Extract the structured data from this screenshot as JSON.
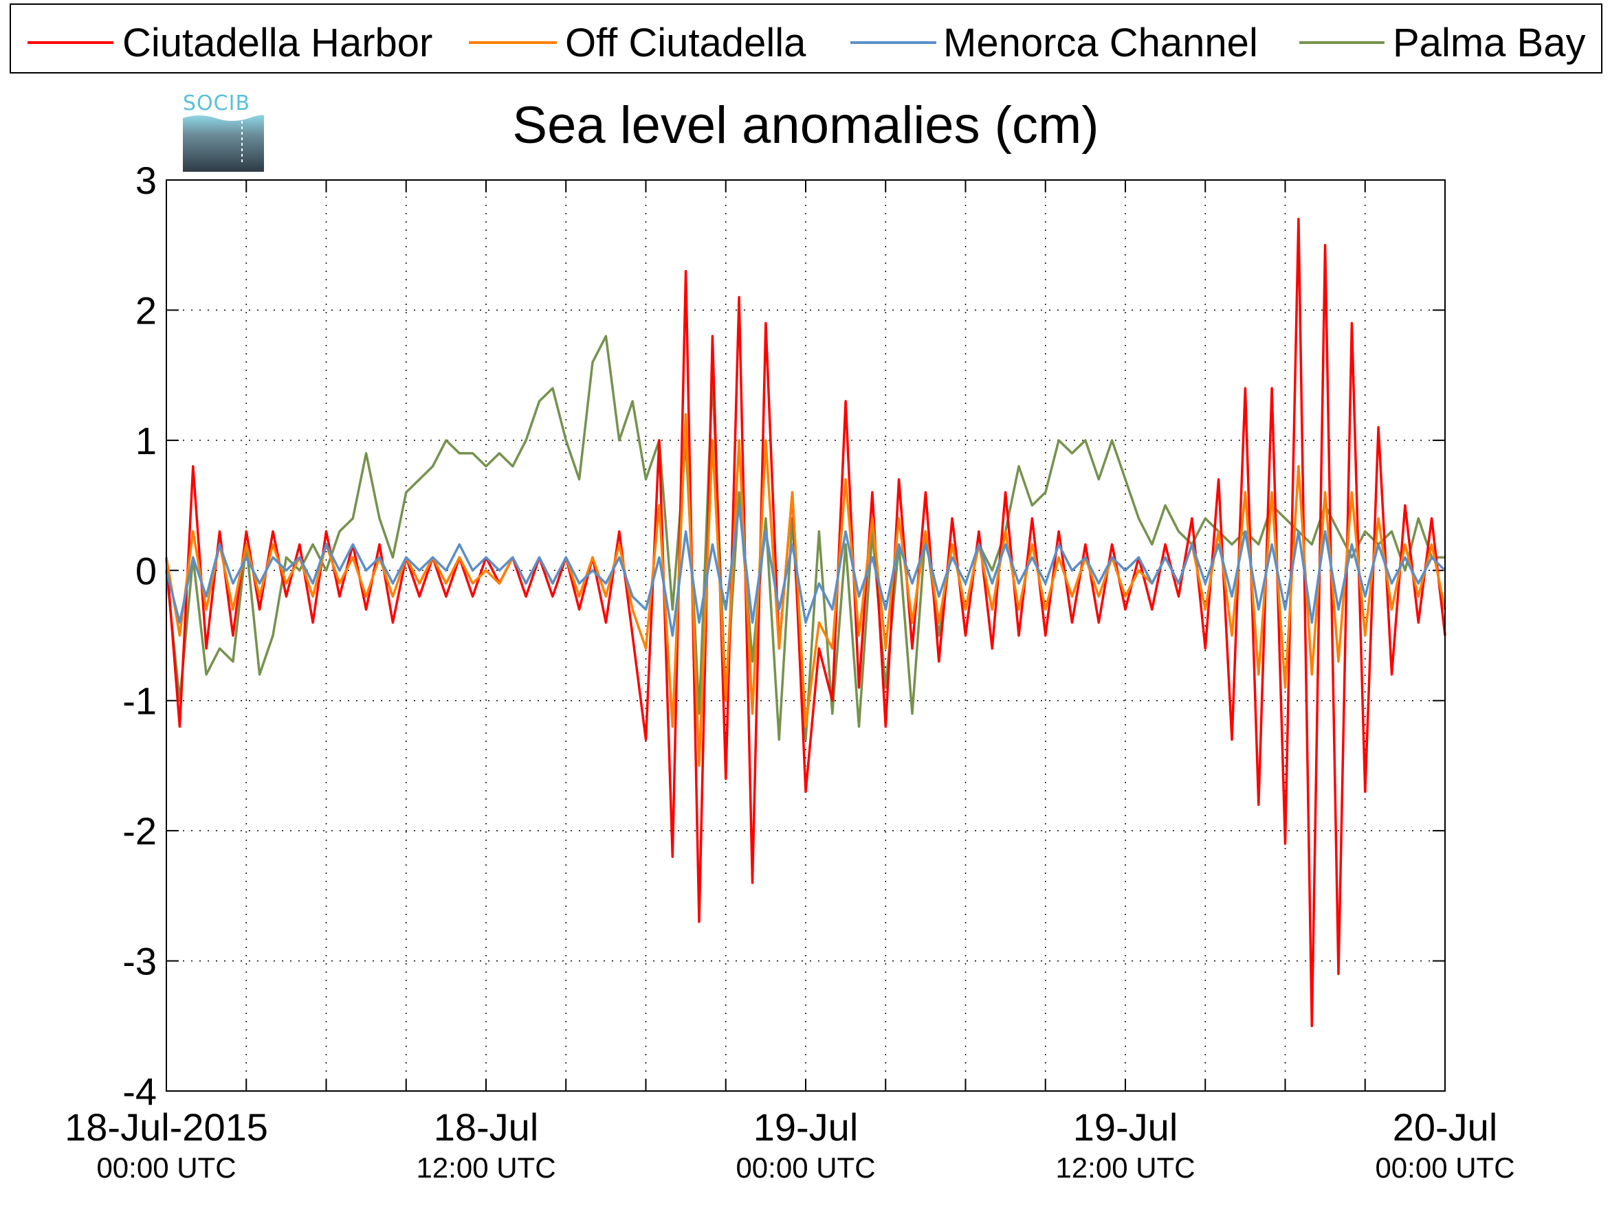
{
  "logo": {
    "text": "SOCIB"
  },
  "chart_data": {
    "type": "line",
    "title": "Sea level anomalies (cm)",
    "xlabel": "",
    "ylabel": "",
    "ylim": [
      -4,
      3
    ],
    "yticks": [
      -4,
      -3,
      -2,
      -1,
      0,
      1,
      2,
      3
    ],
    "yticklabels": [
      "-4",
      "-3",
      "-2",
      "-1",
      "0",
      "1",
      "2",
      "3"
    ],
    "xlim_hours": [
      0,
      48
    ],
    "x_unit": "hours since 18-Jul-2015 00:00 UTC",
    "x_minor_ticks_hours": [
      0,
      3,
      6,
      9,
      12,
      15,
      18,
      21,
      24,
      27,
      30,
      33,
      36,
      39,
      42,
      45,
      48
    ],
    "x_tick_labels": [
      {
        "hour": 0,
        "line1": "18-Jul-2015",
        "line2": "00:00 UTC"
      },
      {
        "hour": 12,
        "line1": "18-Jul",
        "line2": "12:00 UTC"
      },
      {
        "hour": 24,
        "line1": "19-Jul",
        "line2": "00:00 UTC"
      },
      {
        "hour": 36,
        "line1": "19-Jul",
        "line2": "12:00 UTC"
      },
      {
        "hour": 48,
        "line1": "20-Jul",
        "line2": "00:00 UTC"
      }
    ],
    "grid": true,
    "legend_position": "top, horizontal",
    "series": [
      {
        "name": "Ciutadella Harbor",
        "color": "#ff0000",
        "x": [
          0,
          0.5,
          1,
          1.5,
          2,
          2.5,
          3,
          3.5,
          4,
          4.5,
          5,
          5.5,
          6,
          6.5,
          7,
          7.5,
          8,
          8.5,
          9,
          9.5,
          10,
          10.5,
          11,
          11.5,
          12,
          12.5,
          13,
          13.5,
          14,
          14.5,
          15,
          15.5,
          16,
          16.5,
          17,
          17.5,
          18,
          18.5,
          19,
          19.5,
          20,
          20.5,
          21,
          21.5,
          22,
          22.5,
          23,
          23.5,
          24,
          24.5,
          25,
          25.5,
          26,
          26.5,
          27,
          27.5,
          28,
          28.5,
          29,
          29.5,
          30,
          30.5,
          31,
          31.5,
          32,
          32.5,
          33,
          33.5,
          34,
          34.5,
          35,
          35.5,
          36,
          36.5,
          37,
          37.5,
          38,
          38.5,
          39,
          39.5,
          40,
          40.5,
          41,
          41.5,
          42,
          42.5,
          43,
          43.5,
          44,
          44.5,
          45,
          45.5,
          46,
          46.5,
          47,
          47.5,
          48
        ],
        "y": [
          0.1,
          -1.2,
          0.8,
          -0.6,
          0.3,
          -0.5,
          0.3,
          -0.3,
          0.3,
          -0.2,
          0.2,
          -0.4,
          0.3,
          -0.2,
          0.2,
          -0.3,
          0.2,
          -0.4,
          0.1,
          -0.2,
          0.1,
          -0.2,
          0.1,
          -0.2,
          0.1,
          -0.1,
          0.1,
          -0.2,
          0.1,
          -0.2,
          0.1,
          -0.3,
          0.1,
          -0.4,
          0.3,
          -0.5,
          -1.3,
          1.0,
          -2.2,
          2.3,
          -2.7,
          1.8,
          -1.6,
          2.1,
          -2.4,
          1.9,
          -0.6,
          0.6,
          -1.7,
          -0.6,
          -1.0,
          1.3,
          -0.9,
          0.6,
          -1.2,
          0.7,
          -0.6,
          0.6,
          -0.7,
          0.4,
          -0.5,
          0.3,
          -0.6,
          0.6,
          -0.5,
          0.4,
          -0.5,
          0.3,
          -0.4,
          0.2,
          -0.4,
          0.2,
          -0.3,
          0.1,
          -0.3,
          0.2,
          -0.2,
          0.4,
          -0.6,
          0.7,
          -1.3,
          1.4,
          -1.8,
          1.4,
          -2.1,
          2.7,
          -3.5,
          2.5,
          -3.1,
          1.9,
          -1.7,
          1.1,
          -0.8,
          0.5,
          -0.4,
          0.4,
          -0.5
        ]
      },
      {
        "name": "Off Ciutadella",
        "color": "#ff8000",
        "x": [
          0,
          0.5,
          1,
          1.5,
          2,
          2.5,
          3,
          3.5,
          4,
          4.5,
          5,
          5.5,
          6,
          6.5,
          7,
          7.5,
          8,
          8.5,
          9,
          9.5,
          10,
          10.5,
          11,
          11.5,
          12,
          12.5,
          13,
          13.5,
          14,
          14.5,
          15,
          15.5,
          16,
          16.5,
          17,
          17.5,
          18,
          18.5,
          19,
          19.5,
          20,
          20.5,
          21,
          21.5,
          22,
          22.5,
          23,
          23.5,
          24,
          24.5,
          25,
          25.5,
          26,
          26.5,
          27,
          27.5,
          28,
          28.5,
          29,
          29.5,
          30,
          30.5,
          31,
          31.5,
          32,
          32.5,
          33,
          33.5,
          34,
          34.5,
          35,
          35.5,
          36,
          36.5,
          37,
          37.5,
          38,
          38.5,
          39,
          39.5,
          40,
          40.5,
          41,
          41.5,
          42,
          42.5,
          43,
          43.5,
          44,
          44.5,
          45,
          45.5,
          46,
          46.5,
          47,
          47.5,
          48
        ],
        "y": [
          0.1,
          -0.5,
          0.3,
          -0.3,
          0.2,
          -0.3,
          0.2,
          -0.2,
          0.2,
          -0.1,
          0.1,
          -0.2,
          0.2,
          -0.1,
          0.1,
          -0.2,
          0.1,
          -0.2,
          0.1,
          -0.1,
          0.1,
          -0.1,
          0.1,
          -0.1,
          0.0,
          -0.1,
          0.1,
          -0.1,
          0.1,
          -0.1,
          0.1,
          -0.2,
          0.1,
          -0.2,
          0.2,
          -0.3,
          -0.6,
          0.5,
          -1.2,
          1.2,
          -1.5,
          1.0,
          -1.0,
          1.0,
          -1.1,
          1.0,
          -0.6,
          0.6,
          -1.2,
          -0.4,
          -0.6,
          0.7,
          -0.5,
          0.4,
          -0.6,
          0.4,
          -0.4,
          0.3,
          -0.4,
          0.2,
          -0.3,
          0.2,
          -0.3,
          0.3,
          -0.3,
          0.2,
          -0.3,
          0.1,
          -0.2,
          0.1,
          -0.2,
          0.1,
          -0.2,
          0.0,
          -0.1,
          0.1,
          -0.1,
          0.2,
          -0.3,
          0.3,
          -0.5,
          0.6,
          -0.8,
          0.6,
          -0.9,
          0.8,
          -0.8,
          0.6,
          -0.7,
          0.6,
          -0.5,
          0.4,
          -0.3,
          0.2,
          -0.2,
          0.2,
          -0.3
        ]
      },
      {
        "name": "Menorca Channel",
        "color": "#5b8fc8",
        "x": [
          0,
          0.5,
          1,
          1.5,
          2,
          2.5,
          3,
          3.5,
          4,
          4.5,
          5,
          5.5,
          6,
          6.5,
          7,
          7.5,
          8,
          8.5,
          9,
          9.5,
          10,
          10.5,
          11,
          11.5,
          12,
          12.5,
          13,
          13.5,
          14,
          14.5,
          15,
          15.5,
          16,
          16.5,
          17,
          17.5,
          18,
          18.5,
          19,
          19.5,
          20,
          20.5,
          21,
          21.5,
          22,
          22.5,
          23,
          23.5,
          24,
          24.5,
          25,
          25.5,
          26,
          26.5,
          27,
          27.5,
          28,
          28.5,
          29,
          29.5,
          30,
          30.5,
          31,
          31.5,
          32,
          32.5,
          33,
          33.5,
          34,
          34.5,
          35,
          35.5,
          36,
          36.5,
          37,
          37.5,
          38,
          38.5,
          39,
          39.5,
          40,
          40.5,
          41,
          41.5,
          42,
          42.5,
          43,
          43.5,
          44,
          44.5,
          45,
          45.5,
          46,
          46.5,
          47,
          47.5,
          48
        ],
        "y": [
          0.0,
          -0.4,
          0.1,
          -0.2,
          0.2,
          -0.1,
          0.1,
          -0.1,
          0.1,
          0.0,
          0.1,
          -0.1,
          0.2,
          0.0,
          0.2,
          0.0,
          0.1,
          -0.1,
          0.1,
          0.0,
          0.1,
          0.0,
          0.2,
          0.0,
          0.1,
          0.0,
          0.1,
          -0.1,
          0.1,
          -0.1,
          0.1,
          -0.1,
          0.0,
          -0.1,
          0.1,
          -0.2,
          -0.3,
          0.1,
          -0.5,
          0.3,
          -0.4,
          0.2,
          -0.3,
          0.5,
          -0.4,
          0.3,
          -0.3,
          0.2,
          -0.4,
          -0.1,
          -0.3,
          0.3,
          -0.2,
          0.1,
          -0.3,
          0.2,
          -0.1,
          0.2,
          -0.2,
          0.1,
          -0.1,
          0.2,
          -0.1,
          0.2,
          -0.1,
          0.1,
          -0.1,
          0.2,
          0.0,
          0.1,
          -0.1,
          0.1,
          0.0,
          0.1,
          -0.1,
          0.1,
          -0.1,
          0.2,
          -0.1,
          0.2,
          -0.2,
          0.3,
          -0.3,
          0.2,
          -0.3,
          0.3,
          -0.4,
          0.3,
          -0.3,
          0.2,
          -0.2,
          0.2,
          -0.1,
          0.1,
          -0.1,
          0.1,
          0.0
        ]
      },
      {
        "name": "Palma Bay",
        "color": "#76924e",
        "x": [
          0,
          0.5,
          1,
          1.5,
          2,
          2.5,
          3,
          3.5,
          4,
          4.5,
          5,
          5.5,
          6,
          6.5,
          7,
          7.5,
          8,
          8.5,
          9,
          9.5,
          10,
          10.5,
          11,
          11.5,
          12,
          12.5,
          13,
          13.5,
          14,
          14.5,
          15,
          15.5,
          16,
          16.5,
          17,
          17.5,
          18,
          18.5,
          19,
          19.5,
          20,
          20.5,
          21,
          21.5,
          22,
          22.5,
          23,
          23.5,
          24,
          24.5,
          25,
          25.5,
          26,
          26.5,
          27,
          27.5,
          28,
          28.5,
          29,
          29.5,
          30,
          30.5,
          31,
          31.5,
          32,
          32.5,
          33,
          33.5,
          34,
          34.5,
          35,
          35.5,
          36,
          36.5,
          37,
          37.5,
          38,
          38.5,
          39,
          39.5,
          40,
          40.5,
          41,
          41.5,
          42,
          42.5,
          43,
          43.5,
          44,
          44.5,
          45,
          45.5,
          46,
          46.5,
          47,
          47.5,
          48
        ],
        "y": [
          0.0,
          -1.0,
          0.1,
          -0.8,
          -0.6,
          -0.7,
          0.2,
          -0.8,
          -0.5,
          0.1,
          0.0,
          0.2,
          0.0,
          0.3,
          0.4,
          0.9,
          0.4,
          0.1,
          0.6,
          0.7,
          0.8,
          1.0,
          0.9,
          0.9,
          0.8,
          0.9,
          0.8,
          1.0,
          1.3,
          1.4,
          1.0,
          0.7,
          1.6,
          1.8,
          1.0,
          1.3,
          0.7,
          1.0,
          -0.3,
          1.0,
          -1.1,
          1.5,
          -1.0,
          0.6,
          -0.7,
          0.4,
          -1.3,
          0.4,
          -1.3,
          0.3,
          -1.1,
          0.2,
          -1.2,
          0.3,
          -0.9,
          0.2,
          -1.1,
          0.3,
          -0.5,
          0.2,
          -0.3,
          0.2,
          0.0,
          0.3,
          0.8,
          0.5,
          0.6,
          1.0,
          0.9,
          1.0,
          0.7,
          1.0,
          0.7,
          0.4,
          0.2,
          0.5,
          0.3,
          0.2,
          0.4,
          0.3,
          0.2,
          0.3,
          0.2,
          0.5,
          0.4,
          0.3,
          0.2,
          0.5,
          0.3,
          0.1,
          0.3,
          0.2,
          0.3,
          0.0,
          0.4,
          0.1,
          0.1
        ]
      }
    ]
  }
}
